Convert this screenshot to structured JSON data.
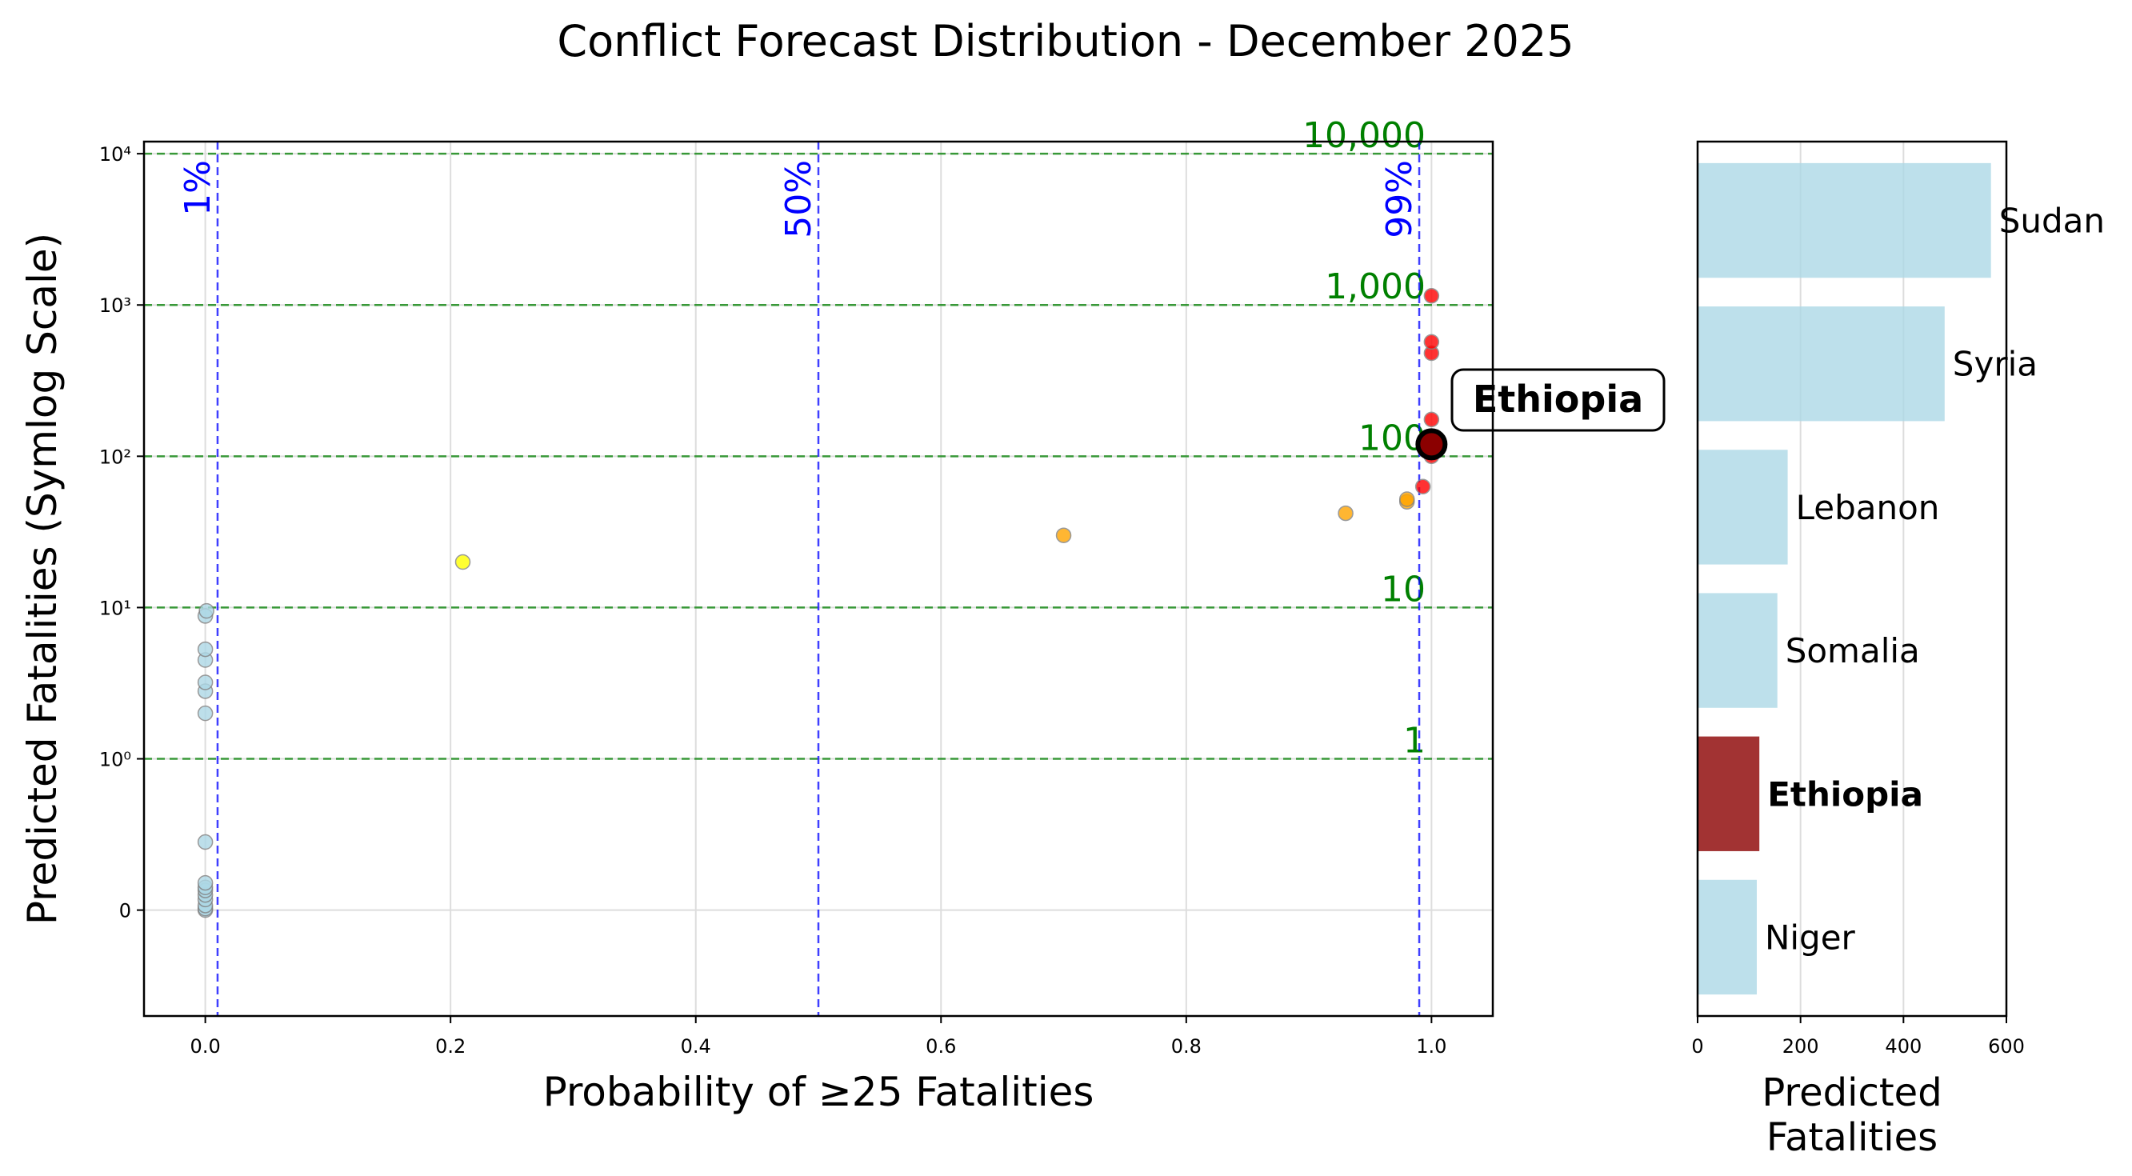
{
  "figure": {
    "title": "Conflict Forecast Distribution - December 2025"
  },
  "chart_data": [
    {
      "type": "scatter",
      "xlabel": "Probability of ≥25 Fatalities",
      "ylabel": "Predicted Fatalities (Symlog Scale)",
      "xlim": [
        -0.05,
        1.05
      ],
      "y_scale": "symlog",
      "ylim": [
        -0.7,
        10000
      ],
      "x_ticks": [
        "0.0",
        "0.2",
        "0.4",
        "0.6",
        "0.8",
        "1.0"
      ],
      "y_ticks": [
        "0",
        "10⁰",
        "10¹",
        "10²",
        "10³",
        "10⁴"
      ],
      "grid": true,
      "probability_lines": [
        {
          "x": 0.01,
          "label": "1%"
        },
        {
          "x": 0.5,
          "label": "50%"
        },
        {
          "x": 0.99,
          "label": "99%"
        }
      ],
      "fatality_lines": [
        {
          "y": 1,
          "label": "1"
        },
        {
          "y": 10,
          "label": "10"
        },
        {
          "y": 100,
          "label": "100"
        },
        {
          "y": 1000,
          "label": "1,000"
        },
        {
          "y": 10000,
          "label": "10,000"
        }
      ],
      "colors": {
        "low": "#add8e6",
        "medium": "#ffff00",
        "high": "#ffa500",
        "very_high": "#ff0000",
        "highlight": "#8b0000",
        "probability_line": "#0000ff",
        "fatality_line": "#008000"
      },
      "points": [
        {
          "x": 0.0,
          "y": 0.0,
          "category": "low"
        },
        {
          "x": 0.0,
          "y": 0.01,
          "category": "low"
        },
        {
          "x": 0.0,
          "y": 0.03,
          "category": "low"
        },
        {
          "x": 0.0,
          "y": 0.07,
          "category": "low"
        },
        {
          "x": 0.0,
          "y": 0.1,
          "category": "low"
        },
        {
          "x": 0.0,
          "y": 0.13,
          "category": "low"
        },
        {
          "x": 0.0,
          "y": 0.15,
          "category": "low"
        },
        {
          "x": 0.0,
          "y": 0.18,
          "category": "low"
        },
        {
          "x": 0.0,
          "y": 0.45,
          "category": "low"
        },
        {
          "x": 0.0,
          "y": 2.0,
          "category": "low"
        },
        {
          "x": 0.0,
          "y": 2.8,
          "category": "low"
        },
        {
          "x": 0.0,
          "y": 3.2,
          "category": "low"
        },
        {
          "x": 0.0,
          "y": 4.5,
          "category": "low"
        },
        {
          "x": 0.0,
          "y": 5.3,
          "category": "low"
        },
        {
          "x": 0.0,
          "y": 8.8,
          "category": "low"
        },
        {
          "x": 0.001,
          "y": 9.5,
          "category": "low"
        },
        {
          "x": 0.21,
          "y": 20,
          "category": "medium"
        },
        {
          "x": 0.7,
          "y": 30,
          "category": "high"
        },
        {
          "x": 0.93,
          "y": 42,
          "category": "high"
        },
        {
          "x": 0.98,
          "y": 50,
          "category": "high"
        },
        {
          "x": 0.98,
          "y": 52,
          "category": "high"
        },
        {
          "x": 0.993,
          "y": 63,
          "category": "very_high"
        },
        {
          "x": 1.0,
          "y": 100,
          "category": "very_high"
        },
        {
          "x": 1.0,
          "y": 110,
          "category": "very_high"
        },
        {
          "x": 1.0,
          "y": 175,
          "category": "very_high"
        },
        {
          "x": 1.0,
          "y": 480,
          "category": "very_high"
        },
        {
          "x": 1.0,
          "y": 570,
          "category": "very_high"
        },
        {
          "x": 1.0,
          "y": 1150,
          "category": "very_high"
        }
      ],
      "highlight": {
        "label": "Ethiopia",
        "x": 1.0,
        "y": 120
      }
    },
    {
      "type": "bar",
      "orientation": "horizontal",
      "categories": [
        "Sudan",
        "Syria",
        "Lebanon",
        "Somalia",
        "Ethiopia",
        "Niger"
      ],
      "values": [
        570,
        480,
        175,
        155,
        120,
        115
      ],
      "highlighted": "Ethiopia",
      "xlabel": "Predicted\nFatalities",
      "xlim": [
        0,
        600
      ],
      "x_ticks": [
        "0",
        "200",
        "400",
        "600"
      ],
      "colors": {
        "bar": "#add8e6",
        "highlight": "#8b0000"
      },
      "grid": true
    }
  ]
}
